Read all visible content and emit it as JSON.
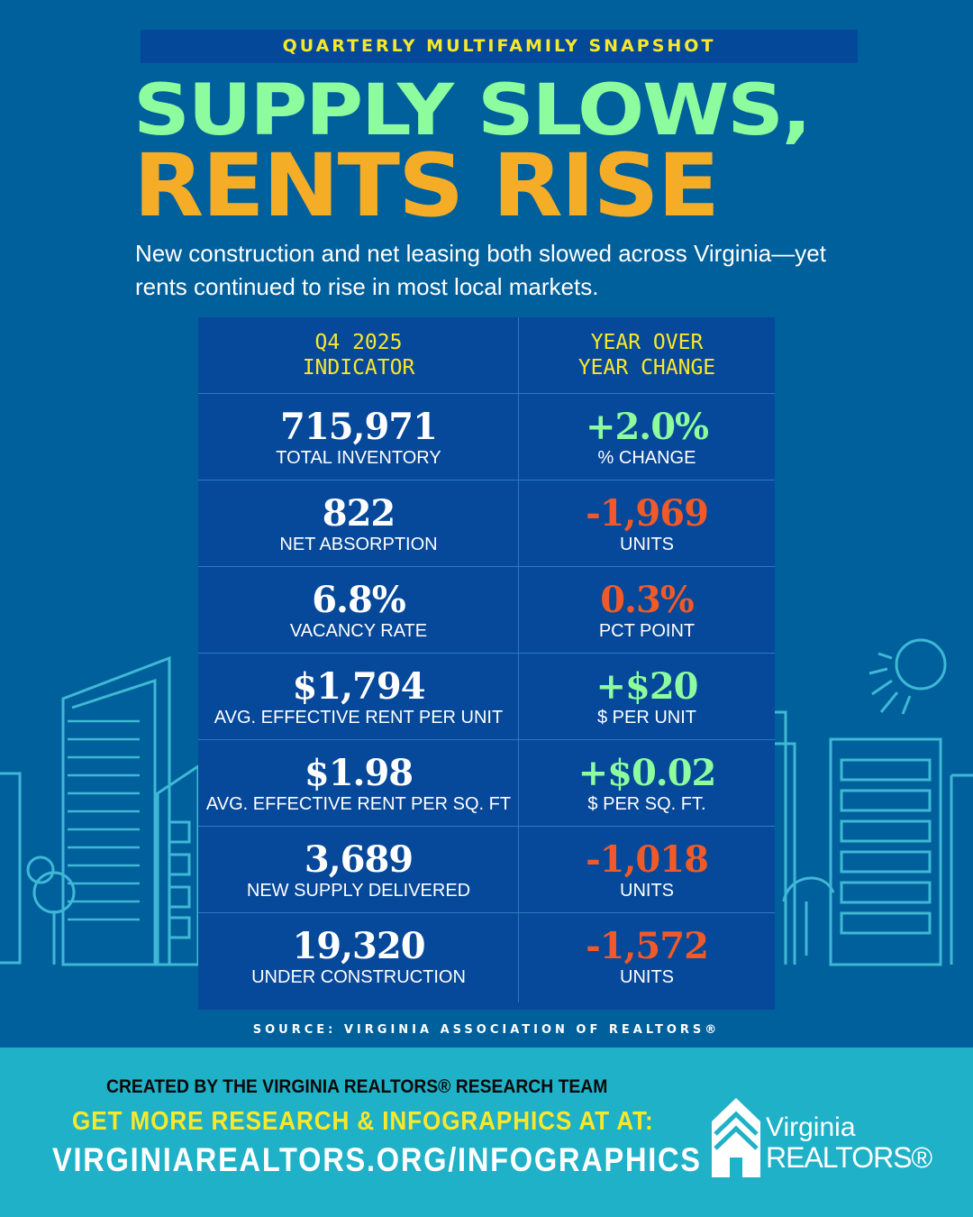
{
  "header": {
    "kicker": "QUARTERLY MULTIFAMILY SNAPSHOT",
    "title_line1": "SUPPLY SLOWS,",
    "title_line2": "RENTS RISE",
    "subtitle": "New construction and net leasing both slowed across Virginia—yet rents continued to rise in most local markets."
  },
  "table": {
    "headers": {
      "left": [
        "Q4 2025",
        "INDICATOR"
      ],
      "right": [
        "YEAR OVER",
        "YEAR CHANGE"
      ]
    },
    "rows": [
      {
        "value": "715,971",
        "label": "TOTAL INVENTORY",
        "change": "+2.0%",
        "change_label": "% CHANGE",
        "direction": "positive"
      },
      {
        "value": "822",
        "label": "NET ABSORPTION",
        "change": "-1,969",
        "change_label": "UNITS",
        "direction": "negative"
      },
      {
        "value": "6.8%",
        "label": "VACANCY RATE",
        "change": "0.3%",
        "change_label": "PCT POINT",
        "direction": "negative"
      },
      {
        "value": "$1,794",
        "label": "AVG. EFFECTIVE RENT PER UNIT",
        "change": "+$20",
        "change_label": "$ PER UNIT",
        "direction": "positive"
      },
      {
        "value": "$1.98",
        "label": "AVG. EFFECTIVE RENT PER SQ. FT",
        "change": "+$0.02",
        "change_label": "$ PER SQ. FT.",
        "direction": "positive"
      },
      {
        "value": "3,689",
        "label": "NEW SUPPLY DELIVERED",
        "change": "-1,018",
        "change_label": "UNITS",
        "direction": "negative"
      },
      {
        "value": "19,320",
        "label": "UNDER CONSTRUCTION",
        "change": "-1,572",
        "change_label": "UNITS",
        "direction": "negative"
      }
    ]
  },
  "source": "SOURCE: VIRGINIA ASSOCIATION OF REALTORS®",
  "footer": {
    "created": "CREATED BY THE VIRGINIA REALTORS® RESEARCH TEAM",
    "more": "GET MORE RESEARCH & INFOGRAPHICS AT AT:",
    "url": "VIRGINIAREALTORS.ORG/INFOGRAPHICS",
    "logo_line1": "Virginia",
    "logo_line2": "REALTORS®"
  },
  "colors": {
    "background": "#00609c",
    "table": "#06489a",
    "footer": "#1fb1c8",
    "positive": "#8dfc9e",
    "negative": "#f05a28",
    "accent_yellow": "#f9e82a",
    "title_orange": "#f5ad28"
  }
}
